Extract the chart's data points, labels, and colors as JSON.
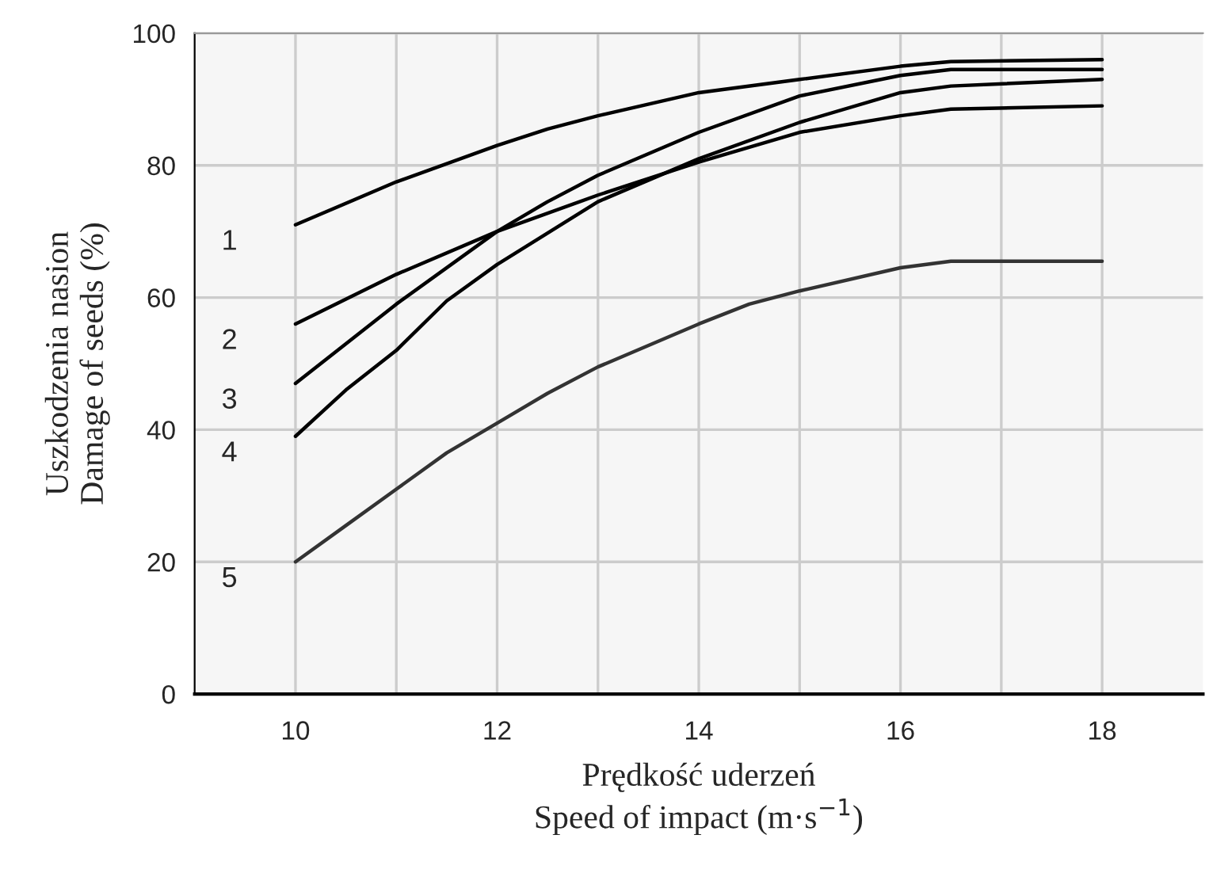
{
  "chart_data": {
    "type": "line",
    "xlabel": "Prędkość uderzeń\nSpeed of impact (m·s$^{−1}$)",
    "ylabel": "Uszkodzenia nasion\nDamage of seeds (%)",
    "series": [
      {
        "name": "1",
        "color": "#000000",
        "x": [
          10,
          11,
          12,
          12.5,
          13,
          14,
          15,
          16,
          16.5,
          18
        ],
        "values": [
          71,
          77.5,
          83,
          85.5,
          87.5,
          91,
          93,
          95,
          95.7,
          96
        ]
      },
      {
        "name": "2",
        "color": "#000000",
        "x": [
          10,
          11,
          12,
          13,
          14,
          15,
          16,
          16.5,
          18
        ],
        "values": [
          56,
          63.5,
          70,
          75.5,
          80.5,
          85,
          87.5,
          88.5,
          89
        ]
      },
      {
        "name": "3",
        "color": "#000000",
        "x": [
          10,
          10.5,
          11,
          12,
          12.5,
          13,
          14,
          15,
          16,
          16.5,
          18
        ],
        "values": [
          47,
          53,
          59,
          70,
          74.5,
          78.5,
          85,
          90.5,
          93.6,
          94.5,
          94.5
        ]
      },
      {
        "name": "4",
        "color": "#000000",
        "x": [
          10,
          10.5,
          11,
          11.5,
          12,
          13,
          14,
          15,
          16,
          16.5,
          18
        ],
        "values": [
          39,
          46,
          52,
          59.5,
          65,
          74.5,
          81,
          86.5,
          91,
          92,
          93
        ]
      },
      {
        "name": "5",
        "color": "#333333",
        "x": [
          10,
          10.5,
          11,
          11.5,
          12,
          12.5,
          13,
          14,
          14.5,
          15,
          16,
          16.5,
          18
        ],
        "values": [
          20,
          25.5,
          31,
          36.5,
          41,
          45.5,
          49.5,
          56,
          59,
          61,
          64.5,
          65.5,
          65.5
        ]
      }
    ],
    "xlim": [
      9,
      19
    ],
    "xticks": [
      10,
      {
        "value": 11,
        "label": null
      },
      12,
      {
        "value": 13,
        "label": null
      },
      14,
      {
        "value": 15,
        "label": null
      },
      16,
      {
        "value": 17,
        "label": null
      },
      18
    ],
    "ylim": [
      0,
      100
    ],
    "yticks": [
      0,
      20,
      40,
      60,
      80,
      100
    ],
    "grid": true,
    "legend": false,
    "marker": "none",
    "line_style": "solid"
  }
}
